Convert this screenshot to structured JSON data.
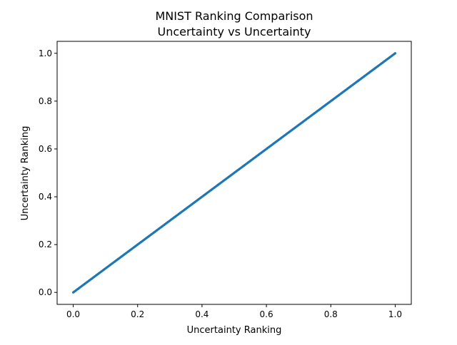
{
  "chart_data": {
    "type": "scatter",
    "title": "MNIST Ranking Comparison",
    "subtitle": "Uncertainty vs Uncertainty",
    "xlabel": "Uncertainty Ranking",
    "ylabel": "Uncertainty Ranking",
    "xlim": [
      -0.05,
      1.05
    ],
    "ylim": [
      -0.05,
      1.05
    ],
    "xticks": [
      "0.0",
      "0.2",
      "0.4",
      "0.6",
      "0.8",
      "1.0"
    ],
    "yticks": [
      "0.0",
      "0.2",
      "0.4",
      "0.6",
      "0.8",
      "1.0"
    ],
    "grid": false,
    "series": [
      {
        "color": "#1f77b4",
        "x_range": [
          0.0,
          1.0
        ],
        "y_range": [
          0.0,
          1.0
        ],
        "relation": "y = x"
      }
    ]
  }
}
